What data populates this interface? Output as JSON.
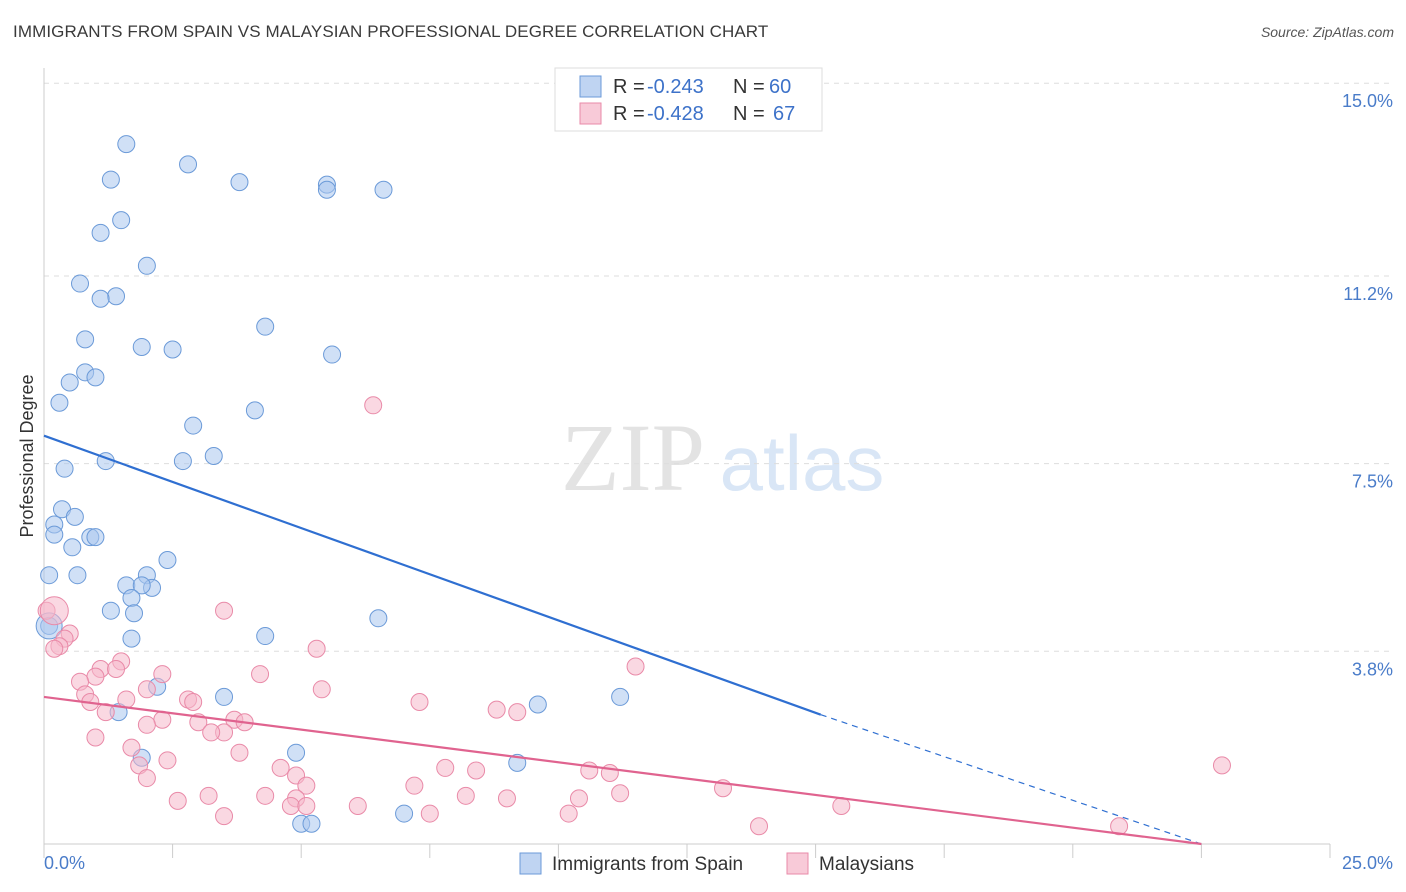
{
  "title": "IMMIGRANTS FROM SPAIN VS MALAYSIAN PROFESSIONAL DEGREE CORRELATION CHART",
  "source": "Source: ZipAtlas.com",
  "watermark": {
    "zip": "ZIP",
    "atlas": "atlas"
  },
  "colors": {
    "blue_fill": "#a9c6ee",
    "blue_stroke": "#6b9ad8",
    "blue_line": "#2f6fd1",
    "pink_fill": "#f6b8cb",
    "pink_stroke": "#e98aa8",
    "pink_line": "#e0638f",
    "grid": "#dddddd",
    "axis_label": "#4a7cc9"
  },
  "chart_data": {
    "type": "scatter",
    "title": "IMMIGRANTS FROM SPAIN VS MALAYSIAN PROFESSIONAL DEGREE CORRELATION CHART",
    "xlabel": "",
    "ylabel": "Professional Degree",
    "xlim": [
      0,
      25
    ],
    "ylim": [
      0,
      15.3
    ],
    "x_tick_labels": [
      {
        "value": 0,
        "label": "0.0%"
      },
      {
        "value": 25,
        "label": "25.0%"
      }
    ],
    "y_ticks": [
      {
        "value": 3.8,
        "label": "3.8%"
      },
      {
        "value": 7.5,
        "label": "7.5%"
      },
      {
        "value": 11.2,
        "label": "11.2%"
      },
      {
        "value": 15.0,
        "label": "15.0%"
      }
    ],
    "legend": {
      "position": "top-center",
      "entries": [
        {
          "series": "Immigrants from Spain",
          "r_label": "R = ",
          "r_value": "-0.243",
          "n_label": "N = ",
          "n_value": "60"
        },
        {
          "series": "Malaysians",
          "r_label": "R = ",
          "r_value": "-0.428",
          "n_label": "N = ",
          "n_value": "67"
        }
      ]
    },
    "series": [
      {
        "name": "Immigrants from Spain",
        "color": "blue",
        "trend": {
          "x0": 0,
          "y0": 8.05,
          "x1": 15.1,
          "y1": 2.55,
          "dashed_to_x": 22.5,
          "dashed_to_y": 0
        },
        "points": [
          {
            "x": 1.6,
            "y": 13.8
          },
          {
            "x": 2.8,
            "y": 13.4
          },
          {
            "x": 1.3,
            "y": 13.1
          },
          {
            "x": 3.8,
            "y": 13.05
          },
          {
            "x": 5.5,
            "y": 13.0
          },
          {
            "x": 5.5,
            "y": 12.9
          },
          {
            "x": 6.6,
            "y": 12.9
          },
          {
            "x": 1.5,
            "y": 12.3
          },
          {
            "x": 1.1,
            "y": 12.05
          },
          {
            "x": 2.0,
            "y": 11.4
          },
          {
            "x": 0.7,
            "y": 11.05
          },
          {
            "x": 1.4,
            "y": 10.8
          },
          {
            "x": 1.1,
            "y": 10.75
          },
          {
            "x": 4.3,
            "y": 10.2
          },
          {
            "x": 0.8,
            "y": 9.95
          },
          {
            "x": 1.9,
            "y": 9.8
          },
          {
            "x": 2.5,
            "y": 9.75
          },
          {
            "x": 5.6,
            "y": 9.65
          },
          {
            "x": 0.8,
            "y": 9.3
          },
          {
            "x": 1.0,
            "y": 9.2
          },
          {
            "x": 0.5,
            "y": 9.1
          },
          {
            "x": 0.3,
            "y": 8.7
          },
          {
            "x": 4.1,
            "y": 8.55
          },
          {
            "x": 2.9,
            "y": 8.25
          },
          {
            "x": 3.3,
            "y": 7.65
          },
          {
            "x": 2.7,
            "y": 7.55
          },
          {
            "x": 1.2,
            "y": 7.55
          },
          {
            "x": 0.4,
            "y": 7.4
          },
          {
            "x": 0.35,
            "y": 6.6
          },
          {
            "x": 0.6,
            "y": 6.45
          },
          {
            "x": 0.2,
            "y": 6.3
          },
          {
            "x": 0.2,
            "y": 6.1
          },
          {
            "x": 0.9,
            "y": 6.05
          },
          {
            "x": 1.0,
            "y": 6.05
          },
          {
            "x": 0.55,
            "y": 5.85
          },
          {
            "x": 2.4,
            "y": 5.6
          },
          {
            "x": 0.1,
            "y": 5.3
          },
          {
            "x": 0.65,
            "y": 5.3
          },
          {
            "x": 2.0,
            "y": 5.3
          },
          {
            "x": 1.6,
            "y": 5.1
          },
          {
            "x": 2.1,
            "y": 5.05
          },
          {
            "x": 1.9,
            "y": 5.1
          },
          {
            "x": 1.7,
            "y": 4.85
          },
          {
            "x": 1.3,
            "y": 4.6
          },
          {
            "x": 1.75,
            "y": 4.55
          },
          {
            "x": 6.5,
            "y": 4.45
          },
          {
            "x": 0.1,
            "y": 4.3
          },
          {
            "x": 1.7,
            "y": 4.05
          },
          {
            "x": 4.3,
            "y": 4.1
          },
          {
            "x": 2.2,
            "y": 3.1
          },
          {
            "x": 3.5,
            "y": 2.9
          },
          {
            "x": 11.2,
            "y": 2.9
          },
          {
            "x": 9.6,
            "y": 2.75
          },
          {
            "x": 1.45,
            "y": 2.6
          },
          {
            "x": 4.9,
            "y": 1.8
          },
          {
            "x": 1.9,
            "y": 1.7
          },
          {
            "x": 9.2,
            "y": 1.6
          },
          {
            "x": 7.0,
            "y": 0.6
          },
          {
            "x": 5.0,
            "y": 0.4
          },
          {
            "x": 5.2,
            "y": 0.4
          }
        ]
      },
      {
        "name": "Malaysians",
        "color": "pink",
        "trend": {
          "x0": 0,
          "y0": 2.9,
          "x1": 22.5,
          "y1": 0
        },
        "points": [
          {
            "x": 6.4,
            "y": 8.65
          },
          {
            "x": 3.5,
            "y": 4.6
          },
          {
            "x": 0.05,
            "y": 4.6
          },
          {
            "x": 0.5,
            "y": 4.15
          },
          {
            "x": 0.4,
            "y": 4.05
          },
          {
            "x": 0.3,
            "y": 3.9
          },
          {
            "x": 0.2,
            "y": 3.85
          },
          {
            "x": 5.3,
            "y": 3.85
          },
          {
            "x": 1.5,
            "y": 3.6
          },
          {
            "x": 1.1,
            "y": 3.45
          },
          {
            "x": 1.4,
            "y": 3.45
          },
          {
            "x": 11.5,
            "y": 3.5
          },
          {
            "x": 2.3,
            "y": 3.35
          },
          {
            "x": 4.2,
            "y": 3.35
          },
          {
            "x": 1.0,
            "y": 3.3
          },
          {
            "x": 0.7,
            "y": 3.2
          },
          {
            "x": 2.0,
            "y": 3.05
          },
          {
            "x": 5.4,
            "y": 3.05
          },
          {
            "x": 0.8,
            "y": 2.95
          },
          {
            "x": 1.6,
            "y": 2.85
          },
          {
            "x": 0.9,
            "y": 2.8
          },
          {
            "x": 2.8,
            "y": 2.85
          },
          {
            "x": 2.9,
            "y": 2.8
          },
          {
            "x": 7.3,
            "y": 2.8
          },
          {
            "x": 8.8,
            "y": 2.65
          },
          {
            "x": 9.2,
            "y": 2.6
          },
          {
            "x": 1.2,
            "y": 2.6
          },
          {
            "x": 2.3,
            "y": 2.45
          },
          {
            "x": 3.7,
            "y": 2.45
          },
          {
            "x": 3.9,
            "y": 2.4
          },
          {
            "x": 3.0,
            "y": 2.4
          },
          {
            "x": 2.0,
            "y": 2.35
          },
          {
            "x": 3.5,
            "y": 2.2
          },
          {
            "x": 3.25,
            "y": 2.2
          },
          {
            "x": 1.0,
            "y": 2.1
          },
          {
            "x": 1.7,
            "y": 1.9
          },
          {
            "x": 3.8,
            "y": 1.8
          },
          {
            "x": 2.4,
            "y": 1.65
          },
          {
            "x": 1.85,
            "y": 1.55
          },
          {
            "x": 4.6,
            "y": 1.5
          },
          {
            "x": 7.8,
            "y": 1.5
          },
          {
            "x": 8.4,
            "y": 1.45
          },
          {
            "x": 10.6,
            "y": 1.45
          },
          {
            "x": 11.0,
            "y": 1.4
          },
          {
            "x": 22.9,
            "y": 1.55
          },
          {
            "x": 4.9,
            "y": 1.35
          },
          {
            "x": 2.0,
            "y": 1.3
          },
          {
            "x": 7.2,
            "y": 1.15
          },
          {
            "x": 5.1,
            "y": 1.15
          },
          {
            "x": 13.2,
            "y": 1.1
          },
          {
            "x": 11.2,
            "y": 1.0
          },
          {
            "x": 4.3,
            "y": 0.95
          },
          {
            "x": 4.9,
            "y": 0.9
          },
          {
            "x": 3.2,
            "y": 0.95
          },
          {
            "x": 8.2,
            "y": 0.95
          },
          {
            "x": 9.0,
            "y": 0.9
          },
          {
            "x": 10.4,
            "y": 0.9
          },
          {
            "x": 2.6,
            "y": 0.85
          },
          {
            "x": 4.8,
            "y": 0.75
          },
          {
            "x": 5.1,
            "y": 0.75
          },
          {
            "x": 6.1,
            "y": 0.75
          },
          {
            "x": 15.5,
            "y": 0.75
          },
          {
            "x": 7.5,
            "y": 0.6
          },
          {
            "x": 10.2,
            "y": 0.6
          },
          {
            "x": 3.5,
            "y": 0.55
          },
          {
            "x": 13.9,
            "y": 0.35
          },
          {
            "x": 20.9,
            "y": 0.35
          }
        ]
      }
    ]
  }
}
